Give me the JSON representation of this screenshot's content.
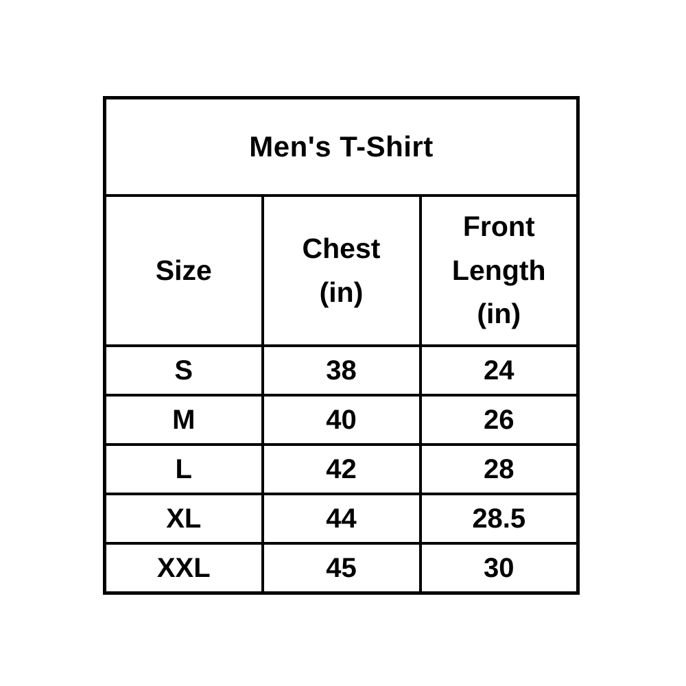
{
  "table": {
    "title": "Men's T-Shirt",
    "headers": [
      {
        "label": "Size"
      },
      {
        "label": "Chest\n(in)"
      },
      {
        "label": "Front\nLength\n(in)"
      }
    ],
    "rows": [
      {
        "size": "S",
        "chest": "38",
        "front_length": "24"
      },
      {
        "size": "M",
        "chest": "40",
        "front_length": "26"
      },
      {
        "size": "L",
        "chest": "42",
        "front_length": "28"
      },
      {
        "size": "XL",
        "chest": "44",
        "front_length": "28.5"
      },
      {
        "size": "XXL",
        "chest": "45",
        "front_length": "30"
      }
    ],
    "border_color": "#000000",
    "text_color": "#000000",
    "background_color": "#ffffff"
  },
  "chart_data": {
    "type": "table",
    "title": "Men's T-Shirt",
    "columns": [
      "Size",
      "Chest (in)",
      "Front Length (in)"
    ],
    "rows": [
      [
        "S",
        38,
        24
      ],
      [
        "M",
        40,
        26
      ],
      [
        "L",
        42,
        28
      ],
      [
        "XL",
        44,
        28.5
      ],
      [
        "XXL",
        45,
        30
      ]
    ],
    "notes": "Men's T-Shirt size chart; measurements in inches; bold black text, black grid borders on white background"
  }
}
